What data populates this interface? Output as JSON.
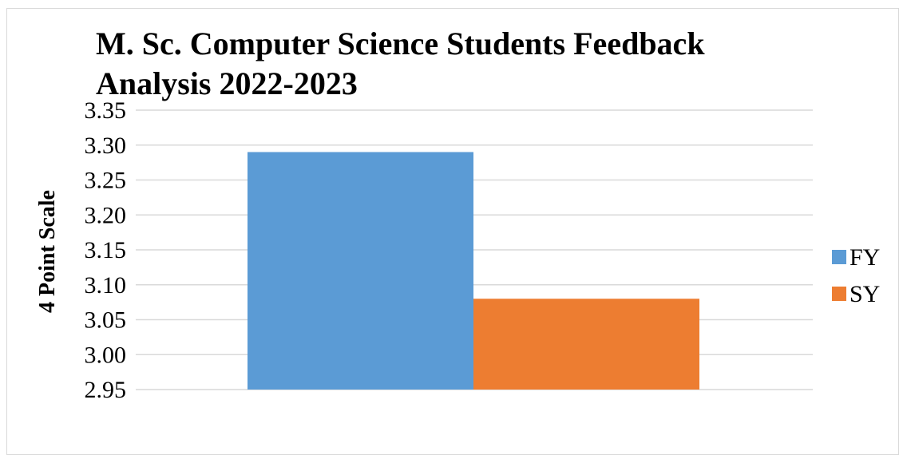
{
  "chart_data": {
    "type": "bar",
    "title_lines": [
      "M. Sc. Computer Science Students Feedback",
      "Analysis 2022-2023"
    ],
    "ylabel": "4 Point Scale",
    "xlabel": "",
    "categories": [
      ""
    ],
    "series": [
      {
        "name": "FY",
        "values": [
          3.29
        ],
        "color": "#5b9bd5"
      },
      {
        "name": "SY",
        "values": [
          3.08
        ],
        "color": "#ed7d31"
      }
    ],
    "ylim": [
      2.95,
      3.35
    ],
    "yticks": [
      "3.35",
      "3.30",
      "3.25",
      "3.20",
      "3.15",
      "3.10",
      "3.05",
      "3.00",
      "2.95"
    ],
    "grid": true,
    "legend_position": "right"
  }
}
